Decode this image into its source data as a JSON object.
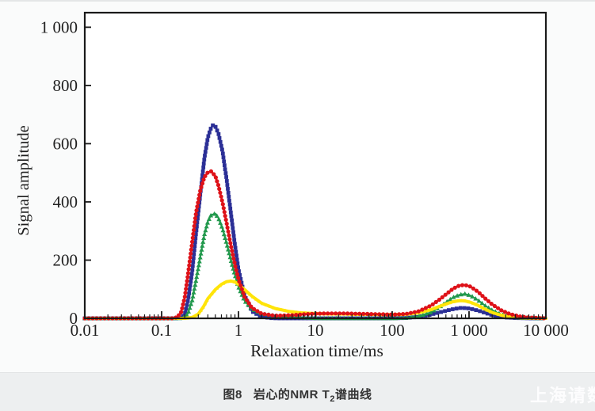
{
  "page": {
    "watermark": "上海请数"
  },
  "caption": {
    "fig_label": "图8",
    "title_pre": "岩心的NMR T",
    "title_sub": "2",
    "title_post": "谱曲线"
  },
  "chart_data": {
    "type": "line",
    "title": "",
    "xlabel": "Relaxation time/ms",
    "ylabel": "Signal amplitude",
    "x_scale": "log",
    "xlim": [
      0.01,
      10000
    ],
    "ylim": [
      0,
      1050
    ],
    "grid": false,
    "legend": "none",
    "axis_color": "#1a1a1a",
    "x_ticks": [
      {
        "value": 0.01,
        "label": "0.01"
      },
      {
        "value": 0.1,
        "label": "0.1"
      },
      {
        "value": 1,
        "label": "1"
      },
      {
        "value": 10,
        "label": "10"
      },
      {
        "value": 100,
        "label": "100"
      },
      {
        "value": 1000,
        "label": "1 000"
      },
      {
        "value": 10000,
        "label": "10 000"
      }
    ],
    "y_ticks": [
      {
        "value": 0,
        "label": "0"
      },
      {
        "value": 200,
        "label": "200"
      },
      {
        "value": 400,
        "label": "400"
      },
      {
        "value": 600,
        "label": "600"
      },
      {
        "value": 800,
        "label": "800"
      },
      {
        "value": 1000,
        "label": "1 000"
      }
    ],
    "series": [
      {
        "name": "series-blue-squares",
        "color": "#2b2f96",
        "marker": "square",
        "marker_size": 4.8,
        "line_width": 2.4,
        "peak1": {
          "x_ms": 0.47,
          "amplitude": 665
        },
        "peak2": {
          "x_ms": 800,
          "amplitude": 36
        },
        "points": [
          [
            0.01,
            0
          ],
          [
            0.02,
            0
          ],
          [
            0.05,
            0
          ],
          [
            0.1,
            0
          ],
          [
            0.15,
            0
          ],
          [
            0.18,
            2
          ],
          [
            0.2,
            15
          ],
          [
            0.22,
            60
          ],
          [
            0.25,
            160
          ],
          [
            0.28,
            290
          ],
          [
            0.32,
            430
          ],
          [
            0.36,
            550
          ],
          [
            0.4,
            622
          ],
          [
            0.44,
            655
          ],
          [
            0.47,
            665
          ],
          [
            0.5,
            660
          ],
          [
            0.55,
            634
          ],
          [
            0.62,
            574
          ],
          [
            0.7,
            478
          ],
          [
            0.8,
            358
          ],
          [
            0.9,
            252
          ],
          [
            1.0,
            168
          ],
          [
            1.2,
            78
          ],
          [
            1.5,
            24
          ],
          [
            2.0,
            5
          ],
          [
            2.6,
            1
          ],
          [
            3.2,
            0
          ],
          [
            5,
            0
          ],
          [
            10,
            0
          ],
          [
            30,
            0
          ],
          [
            80,
            0
          ],
          [
            150,
            1
          ],
          [
            220,
            5
          ],
          [
            320,
            13
          ],
          [
            420,
            21
          ],
          [
            520,
            27
          ],
          [
            650,
            33
          ],
          [
            800,
            36
          ],
          [
            1000,
            34
          ],
          [
            1300,
            27
          ],
          [
            1700,
            17
          ],
          [
            2200,
            8
          ],
          [
            3000,
            3
          ],
          [
            4200,
            1
          ],
          [
            6000,
            0
          ],
          [
            10000,
            0
          ]
        ]
      },
      {
        "name": "series-green-triangles",
        "color": "#22994d",
        "marker": "triangle",
        "marker_size": 5.2,
        "line_width": 2.0,
        "peak1": {
          "x_ms": 0.5,
          "amplitude": 360
        },
        "peak2": {
          "x_ms": 880,
          "amplitude": 84
        },
        "points": [
          [
            0.01,
            0
          ],
          [
            0.05,
            0
          ],
          [
            0.1,
            0
          ],
          [
            0.17,
            0
          ],
          [
            0.2,
            4
          ],
          [
            0.22,
            16
          ],
          [
            0.25,
            62
          ],
          [
            0.28,
            130
          ],
          [
            0.32,
            214
          ],
          [
            0.36,
            288
          ],
          [
            0.4,
            333
          ],
          [
            0.44,
            355
          ],
          [
            0.5,
            360
          ],
          [
            0.55,
            344
          ],
          [
            0.62,
            308
          ],
          [
            0.7,
            258
          ],
          [
            0.8,
            198
          ],
          [
            0.9,
            148
          ],
          [
            1.0,
            108
          ],
          [
            1.2,
            60
          ],
          [
            1.5,
            31
          ],
          [
            2.0,
            16
          ],
          [
            3.0,
            9
          ],
          [
            4.5,
            6
          ],
          [
            6.5,
            3
          ],
          [
            9,
            1
          ],
          [
            15,
            0
          ],
          [
            40,
            0
          ],
          [
            100,
            0
          ],
          [
            160,
            2
          ],
          [
            220,
            7
          ],
          [
            320,
            21
          ],
          [
            420,
            40
          ],
          [
            520,
            58
          ],
          [
            620,
            72
          ],
          [
            750,
            81
          ],
          [
            880,
            84
          ],
          [
            1050,
            78
          ],
          [
            1300,
            63
          ],
          [
            1600,
            45
          ],
          [
            2000,
            28
          ],
          [
            2600,
            14
          ],
          [
            3400,
            6
          ],
          [
            4500,
            2
          ],
          [
            6000,
            1
          ],
          [
            10000,
            0
          ]
        ]
      },
      {
        "name": "series-yellow",
        "color": "#ffe409",
        "marker": "triangle",
        "marker_size": 4.0,
        "line_width": 4.0,
        "peak1": {
          "x_ms": 0.8,
          "amplitude": 128
        },
        "peak2": {
          "x_ms": 750,
          "amplitude": 61
        },
        "points": [
          [
            0.01,
            0
          ],
          [
            0.05,
            0
          ],
          [
            0.1,
            0
          ],
          [
            0.2,
            0
          ],
          [
            0.25,
            3
          ],
          [
            0.3,
            15
          ],
          [
            0.35,
            40
          ],
          [
            0.4,
            68
          ],
          [
            0.5,
            99
          ],
          [
            0.6,
            117
          ],
          [
            0.7,
            126
          ],
          [
            0.8,
            128
          ],
          [
            0.9,
            125
          ],
          [
            1.0,
            117
          ],
          [
            1.2,
            99
          ],
          [
            1.5,
            76
          ],
          [
            2.0,
            52
          ],
          [
            3.0,
            34
          ],
          [
            4.5,
            24
          ],
          [
            6.5,
            19
          ],
          [
            9,
            17
          ],
          [
            15,
            15
          ],
          [
            22,
            15
          ],
          [
            32,
            14
          ],
          [
            50,
            14
          ],
          [
            70,
            13
          ],
          [
            100,
            13
          ],
          [
            150,
            14
          ],
          [
            220,
            19
          ],
          [
            320,
            30
          ],
          [
            420,
            42
          ],
          [
            520,
            51
          ],
          [
            620,
            57
          ],
          [
            750,
            61
          ],
          [
            880,
            60
          ],
          [
            1050,
            55
          ],
          [
            1300,
            45
          ],
          [
            1600,
            32
          ],
          [
            2000,
            20
          ],
          [
            2600,
            11
          ],
          [
            3400,
            5
          ],
          [
            4500,
            2
          ],
          [
            6000,
            1
          ],
          [
            10000,
            0
          ]
        ]
      },
      {
        "name": "series-red-circles",
        "color": "#de1219",
        "marker": "circle",
        "marker_size": 5.2,
        "line_width": 2.4,
        "peak1": {
          "x_ms": 0.44,
          "amplitude": 505
        },
        "peak2": {
          "x_ms": 880,
          "amplitude": 115
        },
        "points": [
          [
            0.01,
            0
          ],
          [
            0.02,
            0
          ],
          [
            0.05,
            0
          ],
          [
            0.1,
            0
          ],
          [
            0.14,
            0
          ],
          [
            0.16,
            4
          ],
          [
            0.18,
            22
          ],
          [
            0.2,
            72
          ],
          [
            0.22,
            150
          ],
          [
            0.25,
            262
          ],
          [
            0.28,
            362
          ],
          [
            0.32,
            442
          ],
          [
            0.36,
            485
          ],
          [
            0.4,
            502
          ],
          [
            0.44,
            505
          ],
          [
            0.5,
            489
          ],
          [
            0.55,
            455
          ],
          [
            0.62,
            398
          ],
          [
            0.7,
            328
          ],
          [
            0.8,
            248
          ],
          [
            0.9,
            184
          ],
          [
            1.0,
            134
          ],
          [
            1.2,
            74
          ],
          [
            1.5,
            36
          ],
          [
            2.0,
            16
          ],
          [
            3.0,
            9
          ],
          [
            5,
            11
          ],
          [
            7,
            14
          ],
          [
            10,
            16
          ],
          [
            15,
            17
          ],
          [
            22,
            17
          ],
          [
            32,
            16
          ],
          [
            50,
            15
          ],
          [
            70,
            14
          ],
          [
            100,
            13
          ],
          [
            150,
            15
          ],
          [
            220,
            24
          ],
          [
            320,
            44
          ],
          [
            420,
            66
          ],
          [
            520,
            86
          ],
          [
            620,
            102
          ],
          [
            750,
            113
          ],
          [
            880,
            115
          ],
          [
            1050,
            109
          ],
          [
            1300,
            92
          ],
          [
            1600,
            70
          ],
          [
            2000,
            48
          ],
          [
            2600,
            28
          ],
          [
            3400,
            15
          ],
          [
            4500,
            7
          ],
          [
            6000,
            3
          ],
          [
            8000,
            1
          ],
          [
            10000,
            0
          ]
        ]
      }
    ]
  }
}
